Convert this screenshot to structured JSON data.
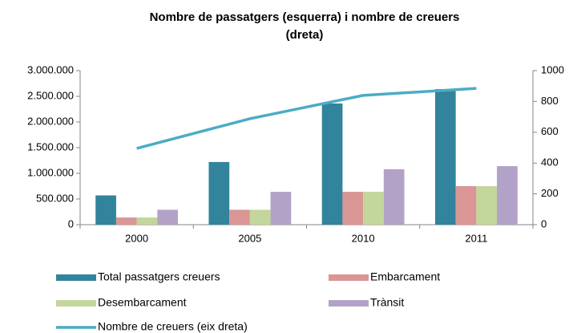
{
  "chart_data": {
    "type": "bar",
    "title": [
      "Nombre de passatgers (esquerra) i nombre de creuers",
      "(dreta)"
    ],
    "categories": [
      "2000",
      "2005",
      "2010",
      "2011"
    ],
    "series": [
      {
        "name": "Total passatgers creuers",
        "color": "#31849b",
        "values": [
          570000,
          1220000,
          2360000,
          2640000
        ]
      },
      {
        "name": "Embarcament",
        "color": "#d99694",
        "values": [
          140000,
          290000,
          640000,
          750000
        ]
      },
      {
        "name": "Desembarcament",
        "color": "#c3d69b",
        "values": [
          140000,
          290000,
          640000,
          750000
        ]
      },
      {
        "name": "Trànsit",
        "color": "#b3a2c7",
        "values": [
          290000,
          640000,
          1080000,
          1140000
        ]
      },
      {
        "name": "Nombre de creuers (eix dreta)",
        "color": "#4bacc6",
        "type": "line",
        "axis": "y2",
        "values": [
          495,
          688,
          839,
          885
        ]
      }
    ],
    "ylim": [
      0,
      3000000
    ],
    "yticks": [
      0,
      {
        "value": 500000,
        "label": "500.000"
      },
      {
        "value": 1000000,
        "label": "1.000.000"
      },
      {
        "value": 1500000,
        "label": "1.500.000"
      },
      {
        "value": 2000000,
        "label": "2.000.000"
      },
      {
        "value": 2500000,
        "label": "2.500.000"
      },
      {
        "value": 3000000,
        "label": "3.000.000"
      }
    ],
    "y2lim": [
      0,
      1000
    ],
    "y2ticks": [
      0,
      200,
      400,
      600,
      800,
      1000
    ],
    "grid": false
  }
}
